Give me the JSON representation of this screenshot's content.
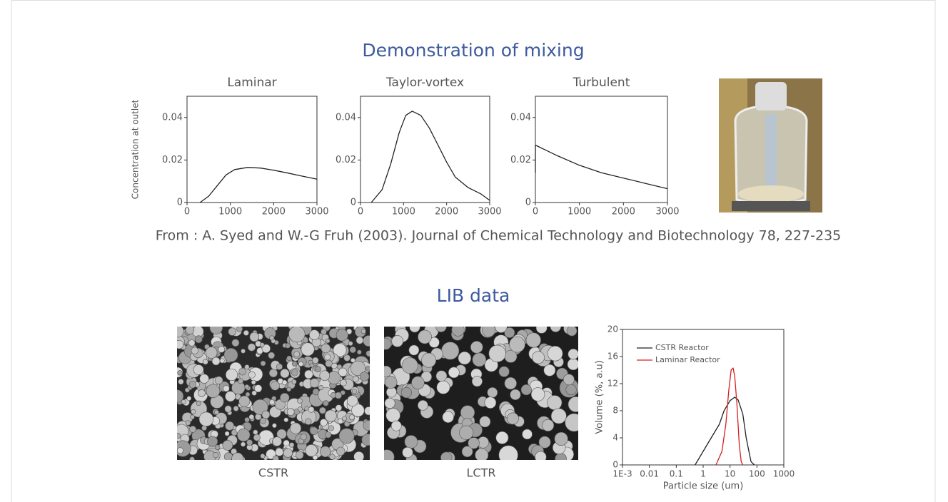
{
  "page": {
    "title": "Demonstration of mixing",
    "caption": "From : A. Syed and W.-G Fruh (2003). Journal of Chemical Technology and Biotechnology 78, 227-235",
    "section_title": "LIB data",
    "image_labels": [
      "CSTR",
      "LCTR"
    ]
  },
  "chart_data": [
    {
      "type": "line",
      "title": "Laminar",
      "ylabel": "Concentration at outlet",
      "xlim": [
        0,
        3000
      ],
      "xticks": [
        0,
        1000,
        2000,
        3000
      ],
      "ylim": [
        0,
        0.05
      ],
      "yticks": [
        0,
        0.02,
        0.04
      ],
      "series": [
        {
          "color": "#222222",
          "x": [
            300,
            500,
            700,
            900,
            1100,
            1400,
            1700,
            2000,
            2300,
            2600,
            3000
          ],
          "values": [
            0,
            0.003,
            0.008,
            0.013,
            0.0155,
            0.0165,
            0.0162,
            0.0152,
            0.014,
            0.0127,
            0.011
          ]
        }
      ]
    },
    {
      "type": "line",
      "title": "Taylor-vortex",
      "xlim": [
        0,
        3000
      ],
      "xticks": [
        0,
        1000,
        2000,
        3000
      ],
      "ylim": [
        0,
        0.05
      ],
      "yticks": [
        0,
        0.02,
        0.04
      ],
      "series": [
        {
          "color": "#222222",
          "x": [
            250,
            500,
            700,
            900,
            1050,
            1200,
            1400,
            1600,
            1800,
            2000,
            2200,
            2500,
            2800,
            3000
          ],
          "values": [
            0,
            0.006,
            0.018,
            0.033,
            0.041,
            0.043,
            0.041,
            0.035,
            0.027,
            0.019,
            0.012,
            0.007,
            0.004,
            0.001
          ]
        }
      ]
    },
    {
      "type": "line",
      "title": "Turbulent",
      "xlim": [
        0,
        3000
      ],
      "xticks": [
        0,
        1000,
        2000,
        3000
      ],
      "ylim": [
        0,
        0.05
      ],
      "yticks": [
        0,
        0.02,
        0.04
      ],
      "series": [
        {
          "color": "#222222",
          "x": [
            0,
            0,
            100,
            500,
            1000,
            1500,
            2000,
            2500,
            3000
          ],
          "values": [
            0.014,
            0.027,
            0.026,
            0.022,
            0.0175,
            0.014,
            0.0115,
            0.009,
            0.0065
          ]
        }
      ]
    },
    {
      "type": "line",
      "xlabel": "Particle size (um)",
      "ylabel": "Volume (%, a.u)",
      "xlog": true,
      "legend": "upper-left",
      "xlim": [
        0.001,
        1000
      ],
      "xticks": [
        {
          "value": 0.001,
          "label": "1E-3"
        },
        0.01,
        0.1,
        1,
        10,
        100,
        1000
      ],
      "ylim": [
        0,
        20
      ],
      "yticks": [
        0,
        4,
        8,
        12,
        16,
        20
      ],
      "series": [
        {
          "name": "CSTR Reactor",
          "color": "#222222",
          "x": [
            0.5,
            1,
            2,
            4,
            6,
            10,
            15,
            20,
            30,
            40,
            60,
            80
          ],
          "values": [
            0,
            2,
            4,
            6,
            8,
            9.5,
            10,
            9.6,
            7.5,
            4,
            0.5,
            0
          ]
        },
        {
          "name": "Laminar Reactor",
          "color": "#d42020",
          "x": [
            3,
            5,
            7,
            9,
            11,
            13,
            15,
            18,
            22,
            26,
            30
          ],
          "values": [
            0,
            2,
            6,
            11,
            14,
            14.3,
            13,
            9,
            3,
            0.5,
            0
          ]
        }
      ]
    }
  ]
}
